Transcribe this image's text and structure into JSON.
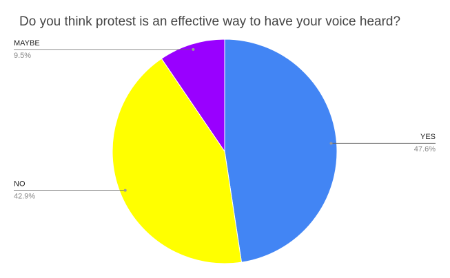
{
  "chart_data": {
    "type": "pie",
    "title": "Do you think protest is an effective way to have your voice heard?",
    "categories": [
      "YES",
      "NO",
      "MAYBE"
    ],
    "values": [
      47.6,
      42.9,
      9.5
    ],
    "value_labels": [
      "47.6%",
      "42.9%",
      "9.5%"
    ],
    "colors": [
      "#4285f4",
      "#ffff00",
      "#9900ff"
    ]
  }
}
